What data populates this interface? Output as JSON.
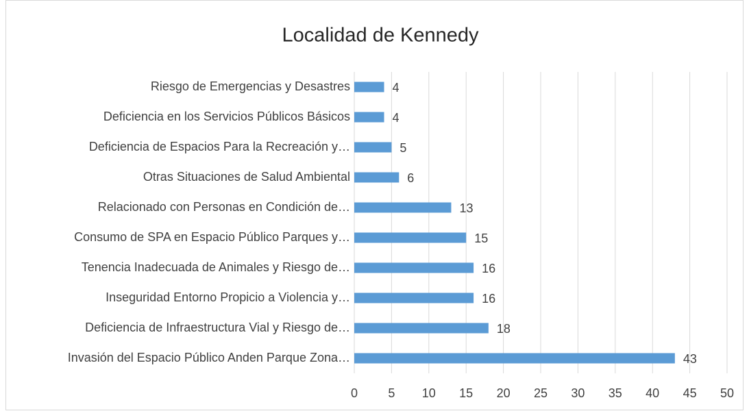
{
  "chart_data": {
    "type": "bar",
    "orientation": "horizontal",
    "title": "Localidad de Kennedy",
    "categories": [
      "Riesgo de Emergencias y Desastres",
      "Deficiencia en los Servicios Públicos Básicos",
      "Deficiencia de Espacios Para la Recreación y…",
      "Otras Situaciones de Salud Ambiental",
      "Relacionado con Personas en Condición de…",
      "Consumo de SPA en Espacio Público Parques y…",
      "Tenencia Inadecuada de Animales y Riesgo de…",
      "Inseguridad Entorno Propicio a Violencia y…",
      "Deficiencia de Infraestructura Vial  y Riesgo de…",
      "Invasión del Espacio Público Anden Parque Zona…"
    ],
    "values": [
      4,
      4,
      5,
      6,
      13,
      15,
      16,
      16,
      18,
      43
    ],
    "color": "#5b9bd5",
    "xlim": [
      0,
      50
    ],
    "xticks": [
      0,
      5,
      10,
      15,
      20,
      25,
      30,
      35,
      40,
      45,
      50
    ],
    "grid": true
  }
}
